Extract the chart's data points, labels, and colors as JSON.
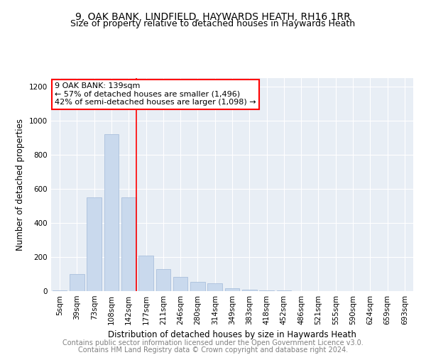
{
  "title1": "9, OAK BANK, LINDFIELD, HAYWARDS HEATH, RH16 1RR",
  "title2": "Size of property relative to detached houses in Haywards Heath",
  "xlabel": "Distribution of detached houses by size in Haywards Heath",
  "ylabel": "Number of detached properties",
  "categories": [
    "5sqm",
    "39sqm",
    "73sqm",
    "108sqm",
    "142sqm",
    "177sqm",
    "211sqm",
    "246sqm",
    "280sqm",
    "314sqm",
    "349sqm",
    "383sqm",
    "418sqm",
    "452sqm",
    "486sqm",
    "521sqm",
    "555sqm",
    "590sqm",
    "624sqm",
    "659sqm",
    "693sqm"
  ],
  "values": [
    5,
    100,
    550,
    920,
    550,
    210,
    130,
    85,
    55,
    45,
    18,
    10,
    5,
    3,
    1,
    0,
    0,
    0,
    0,
    0,
    0
  ],
  "bar_color": "#c9d9ed",
  "bar_edge_color": "#a0b8d8",
  "red_line_x": 4.425,
  "annotation_line1": "9 OAK BANK: 139sqm",
  "annotation_line2": "← 57% of detached houses are smaller (1,496)",
  "annotation_line3": "42% of semi-detached houses are larger (1,098) →",
  "annotation_box_color": "white",
  "annotation_box_edge_color": "red",
  "ylim": [
    0,
    1250
  ],
  "yticks": [
    0,
    200,
    400,
    600,
    800,
    1000,
    1200
  ],
  "plot_bg_color": "#e8eef5",
  "grid_color": "#ffffff",
  "footer_line1": "Contains HM Land Registry data © Crown copyright and database right 2024.",
  "footer_line2": "Contains public sector information licensed under the Open Government Licence v3.0.",
  "title_fontsize": 10,
  "subtitle_fontsize": 9,
  "tick_fontsize": 7.5,
  "ylabel_fontsize": 8.5,
  "xlabel_fontsize": 8.5,
  "annotation_fontsize": 8,
  "footer_fontsize": 7
}
